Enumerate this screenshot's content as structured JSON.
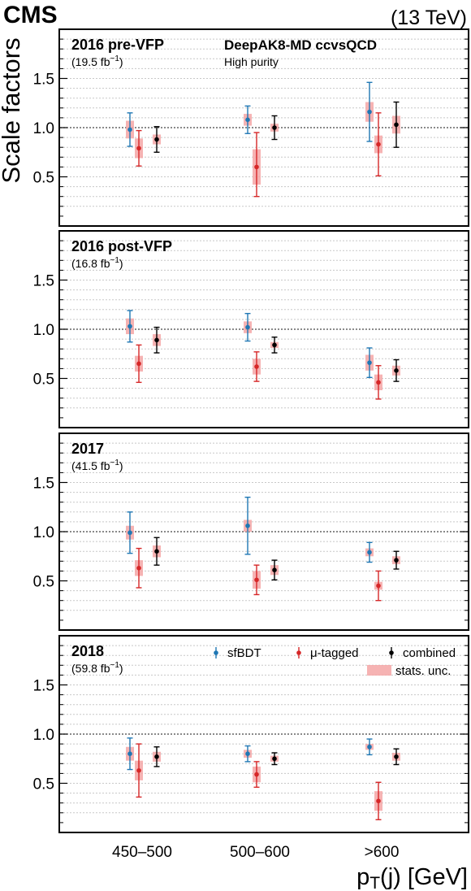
{
  "header": {
    "experiment": "CMS",
    "energy": "(13 TeV)",
    "tagger": "DeepAK8-MD ccvsQCD",
    "working_point": "High purity"
  },
  "colors": {
    "sfbdt": "#1f77b4",
    "mu_tagged": "#d62728",
    "combined": "#000000",
    "stats_band": "#f4a6a6"
  },
  "chart_data": {
    "type": "scatter",
    "ylabel": "Scale factors",
    "xlabel_main": "p",
    "xlabel_sub": "T",
    "xlabel_rest": "(j) [GeV]",
    "categories": [
      "450–500",
      "500–600",
      ">600"
    ],
    "yticks": [
      "0.5",
      "1.0",
      "1.5"
    ],
    "ylim": [
      0,
      2.0
    ],
    "reference_line": 1.0,
    "legend": {
      "entries": [
        "sfBDT",
        "μ-tagged",
        "combined"
      ],
      "band_label": "stats. unc.",
      "placement": "inside-top-right of 2018 panel"
    },
    "panels": [
      {
        "era": "2016 pre-VFP",
        "lumi_prefix": "(19.5 fb",
        "lumi_sup": "−1",
        "lumi_suffix": ")",
        "series": [
          {
            "name": "sfBDT",
            "values": [
              0.98,
              1.08,
              1.16
            ],
            "err_lo": [
              0.17,
              0.14,
              0.3
            ],
            "err_hi": [
              0.17,
              0.14,
              0.3
            ],
            "stat": [
              0.09,
              0.06,
              0.1
            ]
          },
          {
            "name": "μ-tagged",
            "values": [
              0.79,
              0.6,
              0.83
            ],
            "err_lo": [
              0.18,
              0.3,
              0.32
            ],
            "err_hi": [
              0.18,
              0.35,
              0.32
            ],
            "stat": [
              0.1,
              0.18,
              0.09
            ]
          },
          {
            "name": "combined",
            "values": [
              0.88,
              1.0,
              1.03
            ],
            "err_lo": [
              0.13,
              0.12,
              0.23
            ],
            "err_hi": [
              0.13,
              0.12,
              0.23
            ],
            "stat": [
              0.05,
              0.04,
              0.09
            ]
          }
        ]
      },
      {
        "era": "2016 post-VFP",
        "lumi_prefix": "(16.8 fb",
        "lumi_sup": "−1",
        "lumi_suffix": ")",
        "series": [
          {
            "name": "sfBDT",
            "values": [
              1.03,
              1.02,
              0.66
            ],
            "err_lo": [
              0.16,
              0.14,
              0.15
            ],
            "err_hi": [
              0.16,
              0.14,
              0.15
            ],
            "stat": [
              0.08,
              0.06,
              0.08
            ]
          },
          {
            "name": "μ-tagged",
            "values": [
              0.65,
              0.62,
              0.46
            ],
            "err_lo": [
              0.19,
              0.15,
              0.17
            ],
            "err_hi": [
              0.19,
              0.15,
              0.17
            ],
            "stat": [
              0.08,
              0.08,
              0.08
            ]
          },
          {
            "name": "combined",
            "values": [
              0.89,
              0.84,
              0.58
            ],
            "err_lo": [
              0.13,
              0.08,
              0.11
            ],
            "err_hi": [
              0.13,
              0.08,
              0.11
            ],
            "stat": [
              0.06,
              0.03,
              0.05
            ]
          }
        ]
      },
      {
        "era": "2017",
        "lumi_prefix": "(41.5 fb",
        "lumi_sup": "−1",
        "lumi_suffix": ")",
        "series": [
          {
            "name": "sfBDT",
            "values": [
              0.99,
              1.06,
              0.79
            ],
            "err_lo": [
              0.21,
              0.29,
              0.1
            ],
            "err_hi": [
              0.21,
              0.29,
              0.1
            ],
            "stat": [
              0.07,
              0.06,
              0.04
            ]
          },
          {
            "name": "μ-tagged",
            "values": [
              0.63,
              0.51,
              0.45
            ],
            "err_lo": [
              0.2,
              0.15,
              0.15
            ],
            "err_hi": [
              0.2,
              0.15,
              0.15
            ],
            "stat": [
              0.08,
              0.09,
              0.04
            ]
          },
          {
            "name": "combined",
            "values": [
              0.8,
              0.61,
              0.71
            ],
            "err_lo": [
              0.14,
              0.1,
              0.09
            ],
            "err_hi": [
              0.14,
              0.1,
              0.09
            ],
            "stat": [
              0.06,
              0.05,
              0.04
            ]
          }
        ]
      },
      {
        "era": "2018",
        "lumi_prefix": "(59.8 fb",
        "lumi_sup": "−1",
        "lumi_suffix": ")",
        "series": [
          {
            "name": "sfBDT",
            "values": [
              0.8,
              0.8,
              0.87
            ],
            "err_lo": [
              0.16,
              0.08,
              0.08
            ],
            "err_hi": [
              0.16,
              0.08,
              0.08
            ],
            "stat": [
              0.07,
              0.04,
              0.03
            ]
          },
          {
            "name": "μ-tagged",
            "values": [
              0.63,
              0.59,
              0.32
            ],
            "err_lo": [
              0.27,
              0.13,
              0.19
            ],
            "err_hi": [
              0.27,
              0.13,
              0.19
            ],
            "stat": [
              0.1,
              0.08,
              0.1
            ]
          },
          {
            "name": "combined",
            "values": [
              0.77,
              0.75,
              0.77
            ],
            "err_lo": [
              0.1,
              0.06,
              0.08
            ],
            "err_hi": [
              0.1,
              0.06,
              0.08
            ],
            "stat": [
              0.05,
              0.03,
              0.04
            ]
          }
        ]
      }
    ]
  }
}
